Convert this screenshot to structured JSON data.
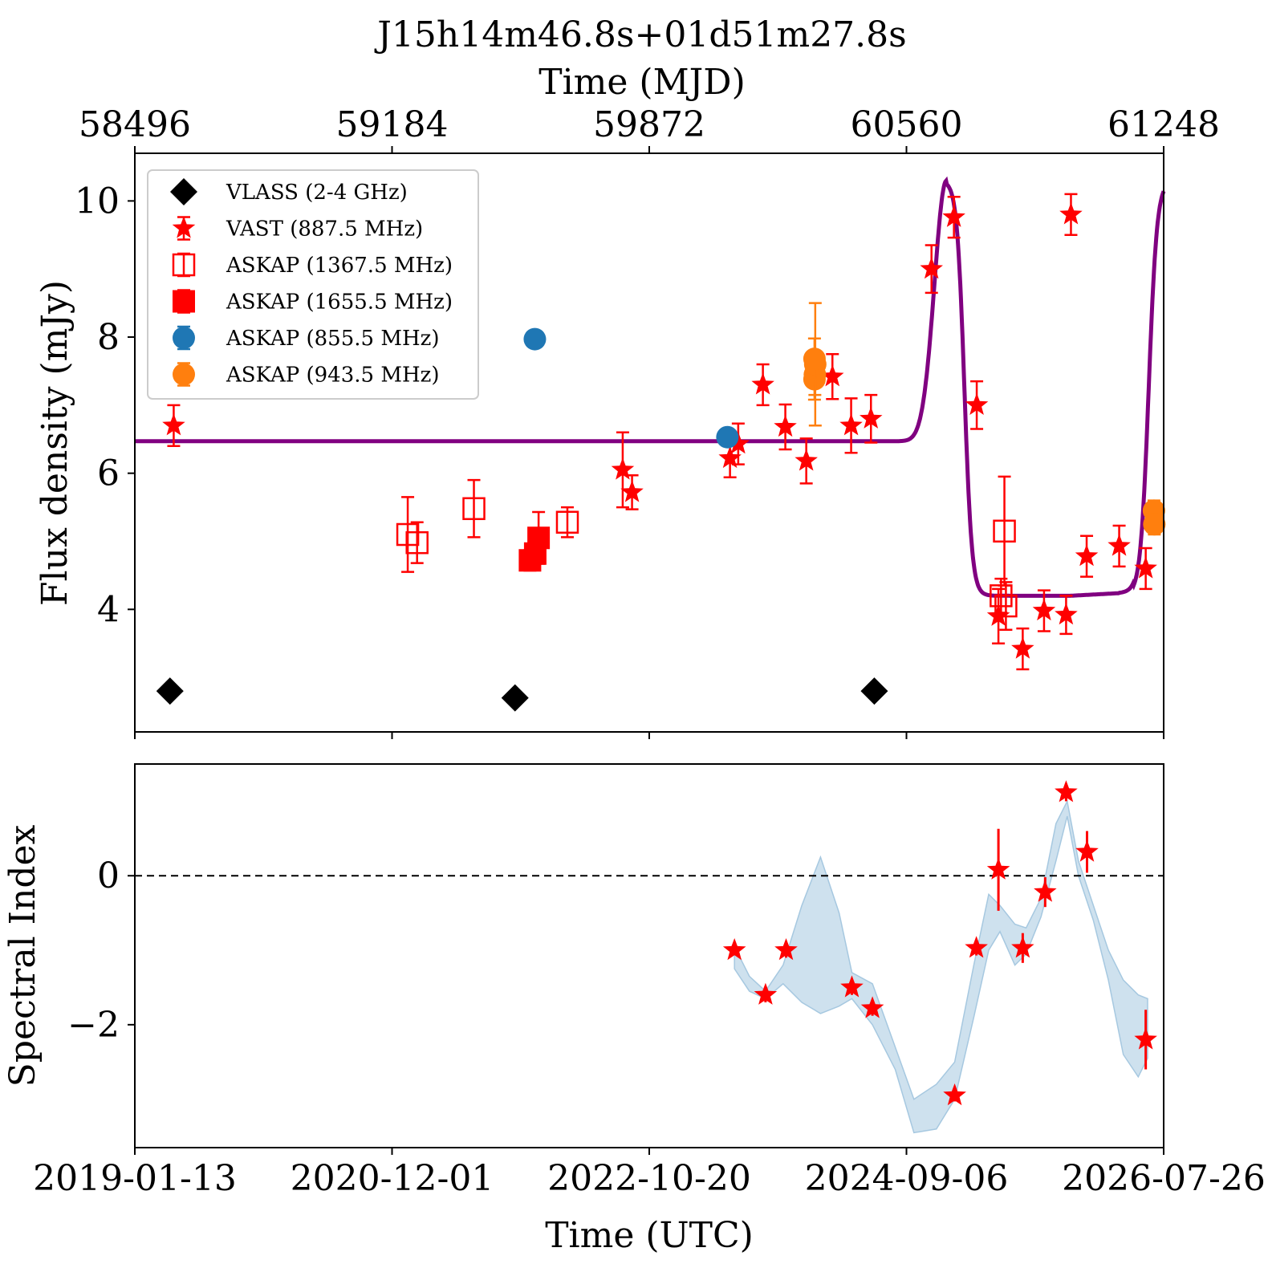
{
  "title": "J15h14m46.8s+01d51m27.8s",
  "colors": {
    "vlass": "#000000",
    "vast": "#ff0000",
    "askap_1367": "#ff0000",
    "askap_1655": "#ff0000",
    "askap_855": "#1f77b4",
    "askap_943": "#ff7f0e",
    "model": "#800080",
    "band": "#a6c8e0"
  },
  "chart_data": [
    {
      "type": "scatter",
      "panel": "top",
      "title": "J15h14m46.8s+01d51m27.8s",
      "top_axis_label": "Time (MJD)",
      "top_ticks": [
        "58496",
        "59184",
        "59872",
        "60560",
        "61248"
      ],
      "ylabel": "Flux density (mJy)",
      "y_ticks": [
        "4",
        "6",
        "8",
        "10"
      ],
      "ylim": [
        2.2,
        10.7
      ],
      "xlim_mjd": [
        58496,
        61248
      ],
      "legend_position": "upper-left",
      "series": [
        {
          "name": "VLASS (2-4 GHz)",
          "marker": "diamond",
          "points": [
            [
              58590,
              2.8,
              0.08
            ],
            [
              59513,
              2.7,
              0.08
            ],
            [
              60474,
              2.8,
              0.08
            ]
          ]
        },
        {
          "name": "VAST (887.5 MHz)",
          "marker": "star",
          "points": [
            [
              58600,
              6.7,
              0.3
            ],
            [
              61000,
              9.8,
              0.3
            ],
            [
              59801,
              6.05,
              0.55
            ],
            [
              59826,
              5.72,
              0.25
            ],
            [
              60088,
              6.22,
              0.28
            ],
            [
              60110,
              6.43,
              0.3
            ],
            [
              60176,
              7.3,
              0.3
            ],
            [
              60236,
              6.68,
              0.33
            ],
            [
              60292,
              6.18,
              0.33
            ],
            [
              60362,
              7.42,
              0.33
            ],
            [
              60412,
              6.7,
              0.4
            ],
            [
              60465,
              6.8,
              0.35
            ],
            [
              60627,
              9.0,
              0.35
            ],
            [
              60687,
              9.76,
              0.3
            ],
            [
              60748,
              7.0,
              0.35
            ],
            [
              60806,
              3.9,
              0.4
            ],
            [
              60871,
              3.42,
              0.3
            ],
            [
              60928,
              3.98,
              0.3
            ],
            [
              60987,
              3.92,
              0.28
            ],
            [
              61042,
              4.78,
              0.3
            ],
            [
              61129,
              4.93,
              0.3
            ],
            [
              61200,
              4.6,
              0.3
            ]
          ]
        },
        {
          "name": "ASKAP (1367.5 MHz)",
          "marker": "square-open",
          "points": [
            [
              59226,
              5.1,
              0.55
            ],
            [
              59251,
              4.98,
              0.3
            ],
            [
              59403,
              5.48,
              0.42
            ],
            [
              59653,
              5.28,
              0.22
            ],
            [
              60813,
              4.2,
              0.25
            ],
            [
              60826,
              4.05,
              0.35
            ],
            [
              60822,
              5.15,
              0.8
            ]
          ]
        },
        {
          "name": "ASKAP (1655.5 MHz)",
          "marker": "square",
          "points": [
            [
              59553,
              4.72,
              0.15
            ],
            [
              59567,
              4.82,
              0.15
            ],
            [
              59576,
              5.05,
              0.38
            ]
          ]
        },
        {
          "name": "ASKAP (855.5 MHz)",
          "marker": "circle",
          "points": [
            [
              59566,
              7.97,
              0.05
            ],
            [
              60081,
              6.53,
              0.05
            ]
          ]
        },
        {
          "name": "ASKAP (943.5 MHz)",
          "marker": "circle",
          "points": [
            [
              60314,
              7.38,
              0.3
            ],
            [
              60315,
              7.45,
              0.3
            ],
            [
              60316,
              7.6,
              0.9
            ],
            [
              60314,
              7.68,
              0.3
            ],
            [
              61222,
              5.45,
              0.15
            ],
            [
              61223,
              5.25,
              0.15
            ]
          ]
        }
      ],
      "model_curve": {
        "baseline": 6.47,
        "peak": 10.3,
        "peak_mjd": 60667,
        "low": 4.2,
        "second_rise_mjd": 61248
      }
    },
    {
      "type": "scatter",
      "panel": "bottom",
      "xlabel": "Time (UTC)",
      "x_ticks": [
        "2019-01-13",
        "2020-12-01",
        "2022-10-20",
        "2024-09-06",
        "2026-07-26"
      ],
      "ylabel": "Spectral Index",
      "y_ticks": [
        "−2",
        "0"
      ],
      "ylim": [
        -3.65,
        1.5
      ],
      "reference_line": 0,
      "points": [
        [
          60100,
          -1.0,
          0.05
        ],
        [
          60183,
          -1.6,
          0.1
        ],
        [
          60238,
          -1.0,
          0.1
        ],
        [
          60414,
          -1.5,
          0.1
        ],
        [
          60469,
          -1.78,
          0.1
        ],
        [
          60689,
          -2.95,
          0.08
        ],
        [
          60747,
          -0.97,
          0.1
        ],
        [
          60806,
          0.08,
          0.55
        ],
        [
          60871,
          -0.97,
          0.2
        ],
        [
          60931,
          -0.22,
          0.2
        ],
        [
          60987,
          1.12,
          0.12
        ],
        [
          61043,
          0.32,
          0.28
        ],
        [
          61200,
          -2.2,
          0.4
        ]
      ],
      "band": {
        "x": [
          60100,
          60140,
          60183,
          60230,
          60280,
          60330,
          60380,
          60414,
          60469,
          60530,
          60580,
          60640,
          60689,
          60740,
          60780,
          60810,
          60850,
          60880,
          60920,
          60960,
          60990,
          61020,
          61060,
          61100,
          61140,
          61180,
          61205
        ],
        "upper": [
          -0.95,
          -1.35,
          -1.55,
          -1.2,
          -0.4,
          0.25,
          -0.5,
          -1.3,
          -1.45,
          -2.3,
          -3.0,
          -2.8,
          -2.5,
          -1.2,
          -0.25,
          -0.4,
          -0.65,
          -0.7,
          -0.3,
          0.7,
          1.0,
          0.2,
          -0.4,
          -1.0,
          -1.4,
          -1.6,
          -1.65
        ],
        "lower": [
          -1.25,
          -1.55,
          -1.65,
          -1.45,
          -1.7,
          -1.85,
          -1.75,
          -1.65,
          -2.0,
          -2.6,
          -3.45,
          -3.4,
          -3.0,
          -1.9,
          -1.0,
          -0.75,
          -1.2,
          -1.05,
          -0.55,
          0.2,
          0.8,
          0.0,
          -0.6,
          -1.4,
          -2.4,
          -2.7,
          -2.45
        ]
      }
    }
  ]
}
